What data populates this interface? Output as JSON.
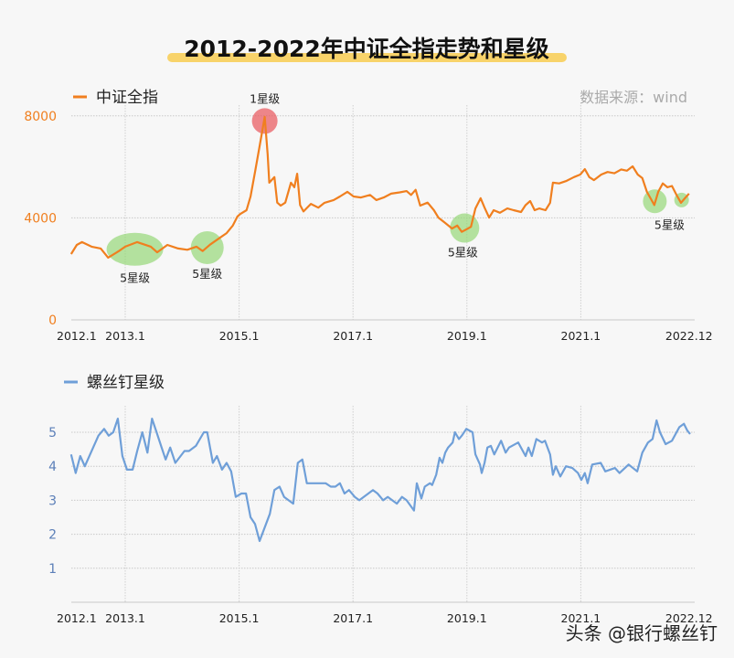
{
  "title": "2012-2022年中证全指走势和星级",
  "watermark": "头条 @银行螺丝钉",
  "colors": {
    "index": "#f07f1f",
    "stars": "#6f9fd8",
    "highlight": "#f8d36a",
    "one_star": "#e8545a",
    "five_star": "#8fd66f"
  },
  "chart_data": [
    {
      "type": "line",
      "legend": "中证全指",
      "source": "数据来源：wind",
      "ylim": [
        0,
        8000
      ],
      "yticks": [
        {
          "label": "0",
          "value": 0
        },
        {
          "label": "4000",
          "value": 4000
        },
        {
          "label": "8000",
          "value": 8000
        }
      ],
      "xticks": [
        {
          "label": "2012.1",
          "value": 2012.0
        },
        {
          "label": "2013.1",
          "value": 2013.0
        },
        {
          "label": "2015.1",
          "value": 2015.0
        },
        {
          "label": "2017.1",
          "value": 2017.0
        },
        {
          "label": "2019.1",
          "value": 2019.0
        },
        {
          "label": "2021.1",
          "value": 2021.0
        },
        {
          "label": "2022.12",
          "value": 2022.9
        }
      ],
      "grid": true,
      "legend_position": "top-left",
      "series": [
        {
          "name": "中证全指",
          "points": [
            [
              2012.05,
              2580
            ],
            [
              2012.15,
              2940
            ],
            [
              2012.24,
              3050
            ],
            [
              2012.41,
              2870
            ],
            [
              2012.57,
              2800
            ],
            [
              2012.7,
              2440
            ],
            [
              2012.89,
              2700
            ],
            [
              2013.0,
              2870
            ],
            [
              2013.21,
              3050
            ],
            [
              2013.45,
              2870
            ],
            [
              2013.56,
              2650
            ],
            [
              2013.74,
              2940
            ],
            [
              2013.93,
              2800
            ],
            [
              2014.09,
              2750
            ],
            [
              2014.25,
              2870
            ],
            [
              2014.36,
              2700
            ],
            [
              2014.49,
              2950
            ],
            [
              2014.65,
              3200
            ],
            [
              2014.78,
              3400
            ],
            [
              2014.89,
              3700
            ],
            [
              2014.97,
              4050
            ],
            [
              2015.02,
              4150
            ],
            [
              2015.13,
              4300
            ],
            [
              2015.2,
              4840
            ],
            [
              2015.28,
              5800
            ],
            [
              2015.36,
              6810
            ],
            [
              2015.45,
              7960
            ],
            [
              2015.5,
              6500
            ],
            [
              2015.53,
              5380
            ],
            [
              2015.62,
              5600
            ],
            [
              2015.67,
              4600
            ],
            [
              2015.73,
              4480
            ],
            [
              2015.81,
              4600
            ],
            [
              2015.91,
              5380
            ],
            [
              2015.97,
              5200
            ],
            [
              2016.02,
              5730
            ],
            [
              2016.07,
              4500
            ],
            [
              2016.13,
              4250
            ],
            [
              2016.26,
              4550
            ],
            [
              2016.39,
              4400
            ],
            [
              2016.5,
              4590
            ],
            [
              2016.66,
              4700
            ],
            [
              2016.77,
              4840
            ],
            [
              2016.9,
              5020
            ],
            [
              2017.01,
              4840
            ],
            [
              2017.14,
              4800
            ],
            [
              2017.3,
              4900
            ],
            [
              2017.41,
              4700
            ],
            [
              2017.54,
              4800
            ],
            [
              2017.67,
              4950
            ],
            [
              2017.82,
              5000
            ],
            [
              2017.94,
              5050
            ],
            [
              2018.02,
              4900
            ],
            [
              2018.1,
              5100
            ],
            [
              2018.18,
              4480
            ],
            [
              2018.31,
              4600
            ],
            [
              2018.42,
              4300
            ],
            [
              2018.5,
              4010
            ],
            [
              2018.62,
              3800
            ],
            [
              2018.74,
              3580
            ],
            [
              2018.83,
              3700
            ],
            [
              2018.91,
              3450
            ],
            [
              2018.99,
              3550
            ],
            [
              2019.07,
              3650
            ],
            [
              2019.15,
              4370
            ],
            [
              2019.24,
              4770
            ],
            [
              2019.31,
              4400
            ],
            [
              2019.39,
              4010
            ],
            [
              2019.47,
              4300
            ],
            [
              2019.58,
              4200
            ],
            [
              2019.71,
              4370
            ],
            [
              2019.82,
              4300
            ],
            [
              2019.95,
              4230
            ],
            [
              2020.03,
              4500
            ],
            [
              2020.11,
              4660
            ],
            [
              2020.19,
              4300
            ],
            [
              2020.27,
              4370
            ],
            [
              2020.38,
              4300
            ],
            [
              2020.46,
              4590
            ],
            [
              2020.51,
              5380
            ],
            [
              2020.62,
              5350
            ],
            [
              2020.75,
              5450
            ],
            [
              2020.88,
              5600
            ],
            [
              2020.99,
              5700
            ],
            [
              2021.07,
              5910
            ],
            [
              2021.15,
              5600
            ],
            [
              2021.23,
              5480
            ],
            [
              2021.36,
              5700
            ],
            [
              2021.47,
              5800
            ],
            [
              2021.59,
              5750
            ],
            [
              2021.71,
              5900
            ],
            [
              2021.81,
              5850
            ],
            [
              2021.91,
              6020
            ],
            [
              2022.0,
              5700
            ],
            [
              2022.08,
              5560
            ],
            [
              2022.16,
              5020
            ],
            [
              2022.23,
              4750
            ],
            [
              2022.29,
              4500
            ],
            [
              2022.36,
              5020
            ],
            [
              2022.44,
              5350
            ],
            [
              2022.52,
              5200
            ],
            [
              2022.6,
              5250
            ],
            [
              2022.68,
              4900
            ],
            [
              2022.76,
              4590
            ],
            [
              2022.84,
              4800
            ],
            [
              2022.9,
              4950
            ]
          ]
        }
      ],
      "annotations": [
        {
          "label": "1星级",
          "year": 2015.45,
          "value": 7800,
          "kind": "one_star"
        },
        {
          "label": "5星级",
          "year": 2013.17,
          "value": 2770,
          "kind": "five_star"
        },
        {
          "label": "5星级",
          "year": 2014.44,
          "value": 2830,
          "kind": "five_star"
        },
        {
          "label": "5星级",
          "year": 2018.96,
          "value": 3600,
          "kind": "five_star"
        },
        {
          "label": "5星级",
          "year": 2022.3,
          "value": 4650,
          "kind": "five_star"
        },
        {
          "label": "",
          "year": 2022.77,
          "value": 4700,
          "kind": "five_star"
        }
      ]
    },
    {
      "type": "line",
      "legend": "螺丝钉星级",
      "ylim": [
        0,
        5.5
      ],
      "yticks": [
        {
          "label": "1",
          "value": 1
        },
        {
          "label": "2",
          "value": 2
        },
        {
          "label": "3",
          "value": 3
        },
        {
          "label": "4",
          "value": 4
        },
        {
          "label": "5",
          "value": 5
        }
      ],
      "xticks": [
        {
          "label": "2012.1",
          "value": 2012.0
        },
        {
          "label": "2013.1",
          "value": 2013.0
        },
        {
          "label": "2015.1",
          "value": 2015.0
        },
        {
          "label": "2017.1",
          "value": 2017.0
        },
        {
          "label": "2019.1",
          "value": 2019.0
        },
        {
          "label": "2021.1",
          "value": 2021.0
        },
        {
          "label": "2022.12",
          "value": 2022.9
        }
      ],
      "grid": true,
      "legend_position": "top-left",
      "series": [
        {
          "name": "螺丝钉星级",
          "points": [
            [
              2012.05,
              4.35
            ],
            [
              2012.13,
              3.8
            ],
            [
              2012.21,
              4.3
            ],
            [
              2012.29,
              4.0
            ],
            [
              2012.53,
              4.9
            ],
            [
              2012.63,
              5.1
            ],
            [
              2012.71,
              4.9
            ],
            [
              2012.79,
              5.0
            ],
            [
              2012.87,
              5.4
            ],
            [
              2012.95,
              4.3
            ],
            [
              2013.03,
              3.9
            ],
            [
              2013.13,
              3.9
            ],
            [
              2013.21,
              4.45
            ],
            [
              2013.3,
              5.0
            ],
            [
              2013.39,
              4.4
            ],
            [
              2013.47,
              5.4
            ],
            [
              2013.55,
              5.0
            ],
            [
              2013.63,
              4.6
            ],
            [
              2013.71,
              4.2
            ],
            [
              2013.79,
              4.55
            ],
            [
              2013.88,
              4.1
            ],
            [
              2014.04,
              4.45
            ],
            [
              2014.12,
              4.45
            ],
            [
              2014.24,
              4.6
            ],
            [
              2014.38,
              5.0
            ],
            [
              2014.44,
              5.0
            ],
            [
              2014.54,
              4.1
            ],
            [
              2014.61,
              4.3
            ],
            [
              2014.7,
              3.9
            ],
            [
              2014.78,
              4.1
            ],
            [
              2014.86,
              3.85
            ],
            [
              2014.94,
              3.1
            ],
            [
              2015.04,
              3.2
            ],
            [
              2015.12,
              3.2
            ],
            [
              2015.2,
              2.5
            ],
            [
              2015.28,
              2.3
            ],
            [
              2015.36,
              1.8
            ],
            [
              2015.54,
              2.6
            ],
            [
              2015.62,
              3.3
            ],
            [
              2015.71,
              3.4
            ],
            [
              2015.79,
              3.1
            ],
            [
              2015.95,
              2.9
            ],
            [
              2016.03,
              4.1
            ],
            [
              2016.11,
              4.2
            ],
            [
              2016.19,
              3.5
            ],
            [
              2016.52,
              3.5
            ],
            [
              2016.61,
              3.4
            ],
            [
              2016.69,
              3.4
            ],
            [
              2016.77,
              3.5
            ],
            [
              2016.85,
              3.2
            ],
            [
              2016.93,
              3.3
            ],
            [
              2017.03,
              3.1
            ],
            [
              2017.11,
              3.0
            ],
            [
              2017.35,
              3.3
            ],
            [
              2017.43,
              3.2
            ],
            [
              2017.53,
              3.0
            ],
            [
              2017.61,
              3.1
            ],
            [
              2017.77,
              2.9
            ],
            [
              2017.86,
              3.1
            ],
            [
              2017.94,
              3.0
            ],
            [
              2018.07,
              2.7
            ],
            [
              2018.12,
              3.5
            ],
            [
              2018.2,
              3.05
            ],
            [
              2018.26,
              3.4
            ],
            [
              2018.35,
              3.5
            ],
            [
              2018.39,
              3.45
            ],
            [
              2018.46,
              3.75
            ],
            [
              2018.52,
              4.25
            ],
            [
              2018.57,
              4.1
            ],
            [
              2018.62,
              4.4
            ],
            [
              2018.67,
              4.55
            ],
            [
              2018.75,
              4.7
            ],
            [
              2018.79,
              5.0
            ],
            [
              2018.86,
              4.8
            ],
            [
              2018.91,
              4.9
            ],
            [
              2018.99,
              5.1
            ],
            [
              2019.1,
              5.0
            ],
            [
              2019.15,
              4.35
            ],
            [
              2019.23,
              4.05
            ],
            [
              2019.26,
              3.8
            ],
            [
              2019.31,
              4.1
            ],
            [
              2019.36,
              4.55
            ],
            [
              2019.42,
              4.6
            ],
            [
              2019.48,
              4.35
            ],
            [
              2019.6,
              4.75
            ],
            [
              2019.68,
              4.4
            ],
            [
              2019.74,
              4.55
            ],
            [
              2019.9,
              4.7
            ],
            [
              2020.03,
              4.3
            ],
            [
              2020.08,
              4.55
            ],
            [
              2020.14,
              4.3
            ],
            [
              2020.22,
              4.8
            ],
            [
              2020.32,
              4.7
            ],
            [
              2020.37,
              4.75
            ],
            [
              2020.46,
              4.35
            ],
            [
              2020.51,
              3.75
            ],
            [
              2020.56,
              4.0
            ],
            [
              2020.64,
              3.7
            ],
            [
              2020.74,
              4.0
            ],
            [
              2020.85,
              3.95
            ],
            [
              2020.95,
              3.8
            ],
            [
              2021.01,
              3.6
            ],
            [
              2021.07,
              3.8
            ],
            [
              2021.12,
              3.5
            ],
            [
              2021.2,
              4.05
            ],
            [
              2021.35,
              4.1
            ],
            [
              2021.43,
              3.85
            ],
            [
              2021.6,
              3.95
            ],
            [
              2021.68,
              3.8
            ],
            [
              2021.84,
              4.05
            ],
            [
              2021.99,
              3.85
            ],
            [
              2022.08,
              4.4
            ],
            [
              2022.18,
              4.7
            ],
            [
              2022.26,
              4.8
            ],
            [
              2022.33,
              5.35
            ],
            [
              2022.39,
              5.0
            ],
            [
              2022.49,
              4.65
            ],
            [
              2022.6,
              4.75
            ],
            [
              2022.73,
              5.15
            ],
            [
              2022.81,
              5.25
            ],
            [
              2022.87,
              5.05
            ],
            [
              2022.92,
              4.95
            ]
          ]
        }
      ]
    }
  ]
}
